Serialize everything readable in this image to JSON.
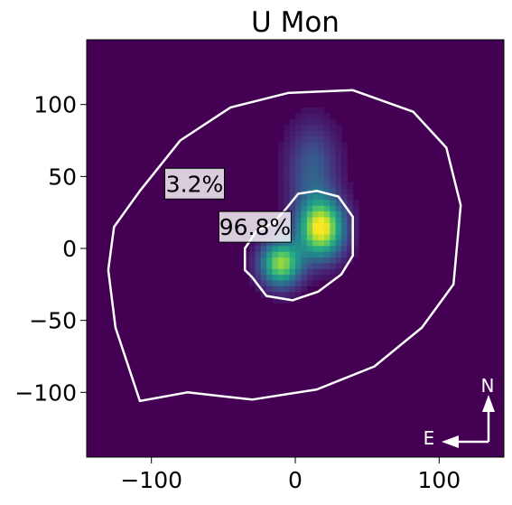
{
  "chart_data": {
    "type": "heatmap",
    "title": "U Mon",
    "xlabel": "",
    "ylabel": "",
    "xlim": [
      -145,
      145
    ],
    "ylim": [
      -145,
      145
    ],
    "xticks": [
      -100,
      0,
      100
    ],
    "xtick_labels": [
      "−100",
      "0",
      "100"
    ],
    "yticks": [
      100,
      50,
      0,
      -50,
      -100
    ],
    "ytick_labels": [
      "100",
      "50",
      "0",
      "−50",
      "−100"
    ],
    "grid": false,
    "colormap": "viridis",
    "background_color": "#440154",
    "contour_color": "#ffffff",
    "peaks": [
      {
        "x": 18,
        "y": 14,
        "amplitude": 1.0,
        "sigma_x": 11,
        "sigma_y": 14
      },
      {
        "x": -10,
        "y": -10,
        "amplitude": 0.85,
        "sigma_x": 10,
        "sigma_y": 11
      },
      {
        "x": 12,
        "y": 55,
        "amplitude": 0.3,
        "sigma_x": 12,
        "sigma_y": 22
      }
    ],
    "contours": [
      {
        "label": "3.2%",
        "points": [
          [
            -108,
            -106
          ],
          [
            -75,
            -100
          ],
          [
            -30,
            -105
          ],
          [
            15,
            -98
          ],
          [
            55,
            -82
          ],
          [
            88,
            -55
          ],
          [
            110,
            -25
          ],
          [
            115,
            30
          ],
          [
            105,
            70
          ],
          [
            82,
            95
          ],
          [
            40,
            110
          ],
          [
            -5,
            108
          ],
          [
            -45,
            98
          ],
          [
            -80,
            75
          ],
          [
            -108,
            40
          ],
          [
            -126,
            15
          ],
          [
            -130,
            -15
          ],
          [
            -125,
            -55
          ]
        ]
      },
      {
        "label": "96.8%",
        "points": [
          [
            -30,
            -20
          ],
          [
            -20,
            -33
          ],
          [
            -2,
            -36
          ],
          [
            16,
            -30
          ],
          [
            32,
            -18
          ],
          [
            40,
            -5
          ],
          [
            40,
            22
          ],
          [
            30,
            36
          ],
          [
            15,
            40
          ],
          [
            2,
            38
          ],
          [
            -6,
            28
          ],
          [
            -15,
            18
          ],
          [
            -27,
            12
          ],
          [
            -35,
            0
          ],
          [
            -35,
            -15
          ]
        ]
      }
    ],
    "annotations": [
      {
        "text": "3.2%",
        "x": -70,
        "y": 45
      },
      {
        "text": "96.8%",
        "x": -28,
        "y": 15
      }
    ],
    "compass": {
      "north": "N",
      "east": "E"
    }
  }
}
